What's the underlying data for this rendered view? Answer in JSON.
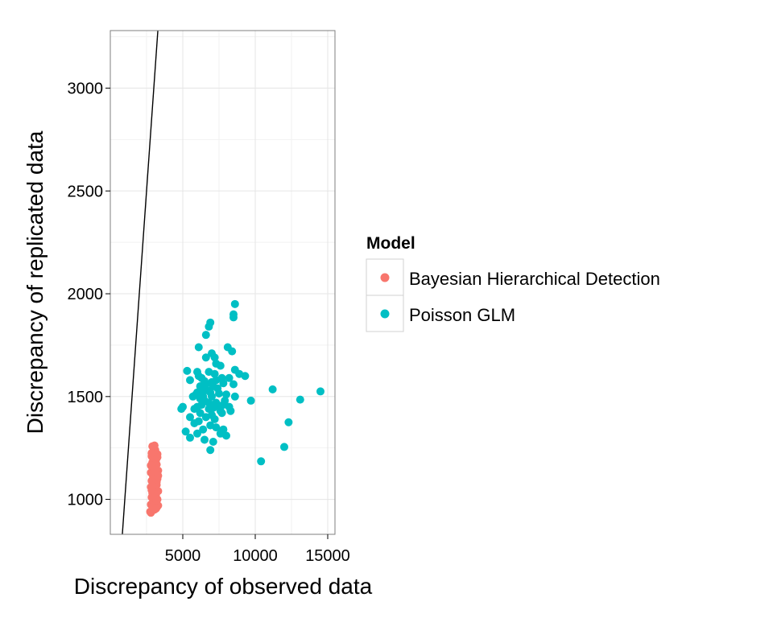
{
  "chart_data": {
    "type": "scatter",
    "title": "",
    "xlabel": "Discrepancy of observed data",
    "ylabel": "Discrepancy of replicated data",
    "xlim": [
      0,
      15500
    ],
    "ylim": [
      830,
      3280
    ],
    "xticks": [
      5000,
      10000,
      15000
    ],
    "yticks": [
      1000,
      1500,
      2000,
      2500,
      3000
    ],
    "x_tick_labels": [
      "5000",
      "10000",
      "15000"
    ],
    "y_tick_labels": [
      "1000",
      "1500",
      "2000",
      "2500",
      "3000"
    ],
    "grid": true,
    "legend": {
      "title": "Model",
      "placement": "right"
    },
    "reference_line": {
      "type": "y = x",
      "color": "#000000"
    },
    "series": [
      {
        "name": "Bayesian Hierarchical Detection",
        "color": "#F8766D",
        "points": [
          [
            2750,
            940
          ],
          [
            2800,
            935
          ],
          [
            2900,
            945
          ],
          [
            3050,
            950
          ],
          [
            3200,
            960
          ],
          [
            3300,
            970
          ],
          [
            2800,
            975
          ],
          [
            3100,
            980
          ],
          [
            2950,
            990
          ],
          [
            3250,
            1000
          ],
          [
            2850,
            1010
          ],
          [
            3150,
            1020
          ],
          [
            2900,
            1030
          ],
          [
            3300,
            1040
          ],
          [
            3000,
            1050
          ],
          [
            2800,
            1060
          ],
          [
            3200,
            1070
          ],
          [
            3050,
            1080
          ],
          [
            2850,
            1090
          ],
          [
            3250,
            1100
          ],
          [
            2950,
            1110
          ],
          [
            3100,
            1120
          ],
          [
            2800,
            1130
          ],
          [
            3300,
            1140
          ],
          [
            3000,
            1150
          ],
          [
            2850,
            1160
          ],
          [
            3200,
            1170
          ],
          [
            2900,
            1180
          ],
          [
            3150,
            1190
          ],
          [
            3050,
            1200
          ],
          [
            2850,
            1210
          ],
          [
            3250,
            1220
          ],
          [
            2950,
            1230
          ],
          [
            3100,
            1240
          ],
          [
            3000,
            1250
          ],
          [
            2900,
            1258
          ],
          [
            3050,
            1262
          ],
          [
            2900,
            965
          ],
          [
            3100,
            1005
          ],
          [
            2850,
            1045
          ],
          [
            3200,
            1085
          ],
          [
            3000,
            1125
          ],
          [
            2800,
            1165
          ],
          [
            3250,
            1205
          ],
          [
            3100,
            1145
          ],
          [
            2950,
            1065
          ],
          [
            3200,
            995
          ],
          [
            3150,
            955
          ],
          [
            2850,
            1225
          ],
          [
            3300,
            1115
          ]
        ]
      },
      {
        "name": "Poisson GLM",
        "color": "#00BFC4",
        "points": [
          [
            8600,
            1950
          ],
          [
            6900,
            1860
          ],
          [
            6800,
            1840
          ],
          [
            8500,
            1900
          ],
          [
            8500,
            1885
          ],
          [
            6600,
            1800
          ],
          [
            6100,
            1740
          ],
          [
            7000,
            1710
          ],
          [
            8100,
            1740
          ],
          [
            8400,
            1720
          ],
          [
            6600,
            1690
          ],
          [
            7200,
            1690
          ],
          [
            7300,
            1660
          ],
          [
            7600,
            1650
          ],
          [
            8600,
            1630
          ],
          [
            6000,
            1620
          ],
          [
            5300,
            1625
          ],
          [
            6800,
            1620
          ],
          [
            7200,
            1610
          ],
          [
            8900,
            1610
          ],
          [
            9300,
            1600
          ],
          [
            6300,
            1590
          ],
          [
            7700,
            1590
          ],
          [
            8200,
            1590
          ],
          [
            5500,
            1580
          ],
          [
            6500,
            1575
          ],
          [
            7000,
            1570
          ],
          [
            7800,
            1565
          ],
          [
            6200,
            1550
          ],
          [
            7100,
            1550
          ],
          [
            8500,
            1560
          ],
          [
            11200,
            1535
          ],
          [
            14500,
            1525
          ],
          [
            6000,
            1520
          ],
          [
            6900,
            1520
          ],
          [
            7500,
            1515
          ],
          [
            8000,
            1510
          ],
          [
            5700,
            1500
          ],
          [
            6400,
            1500
          ],
          [
            8600,
            1500
          ],
          [
            9700,
            1480
          ],
          [
            13100,
            1485
          ],
          [
            6500,
            1480
          ],
          [
            7300,
            1470
          ],
          [
            5000,
            1450
          ],
          [
            6000,
            1450
          ],
          [
            7800,
            1460
          ],
          [
            4900,
            1440
          ],
          [
            5800,
            1440
          ],
          [
            6800,
            1440
          ],
          [
            7600,
            1430
          ],
          [
            8300,
            1430
          ],
          [
            6200,
            1420
          ],
          [
            7000,
            1410
          ],
          [
            5500,
            1400
          ],
          [
            6600,
            1400
          ],
          [
            7200,
            1390
          ],
          [
            6100,
            1380
          ],
          [
            5800,
            1370
          ],
          [
            6900,
            1360
          ],
          [
            12300,
            1375
          ],
          [
            6400,
            1340
          ],
          [
            7300,
            1350
          ],
          [
            7800,
            1340
          ],
          [
            5200,
            1330
          ],
          [
            6000,
            1320
          ],
          [
            7600,
            1320
          ],
          [
            8000,
            1310
          ],
          [
            5500,
            1300
          ],
          [
            6500,
            1290
          ],
          [
            7100,
            1280
          ],
          [
            6900,
            1240
          ],
          [
            12000,
            1255
          ],
          [
            10400,
            1185
          ],
          [
            6700,
            1530
          ],
          [
            7400,
            1540
          ],
          [
            6300,
            1460
          ],
          [
            7900,
            1480
          ],
          [
            5900,
            1510
          ],
          [
            6600,
            1560
          ],
          [
            7700,
            1420
          ],
          [
            8200,
            1450
          ],
          [
            6100,
            1600
          ],
          [
            7300,
            1580
          ],
          [
            6800,
            1470
          ],
          [
            7000,
            1500
          ],
          [
            6200,
            1490
          ],
          [
            7500,
            1455
          ],
          [
            6400,
            1530
          ],
          [
            7100,
            1445
          ]
        ]
      }
    ]
  }
}
